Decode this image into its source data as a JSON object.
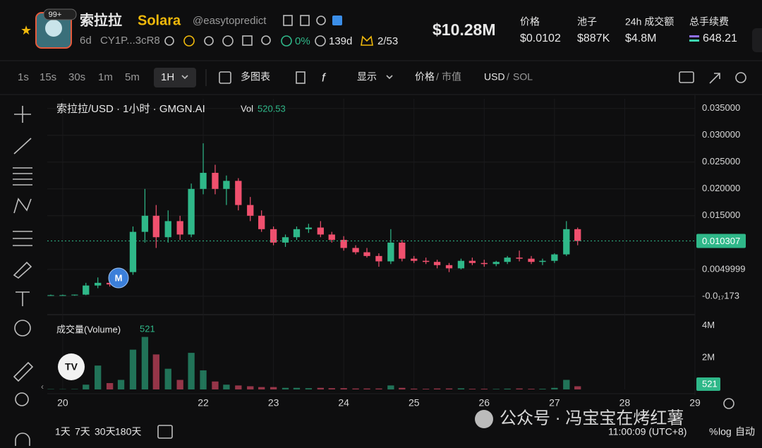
{
  "header": {
    "badge": "99+",
    "name": "索拉拉",
    "symbol": "Solara",
    "handle": "@easytopredict",
    "age": "6d",
    "address": "CY1P...3cR8",
    "holders_pct": "0%",
    "days": "139d",
    "ratio": "2/53",
    "market_cap": "$10.28M",
    "stats": [
      {
        "label": "价格",
        "value": "$0.0102"
      },
      {
        "label": "池子",
        "value": "$887K"
      },
      {
        "label": "24h 成交额",
        "value": "$4.8M"
      },
      {
        "label": "总手续费",
        "value": "648.21"
      }
    ]
  },
  "toolbar": {
    "intervals": [
      "1s",
      "15s",
      "30s",
      "1m",
      "5m",
      "1H"
    ],
    "multi_chart": "多图表",
    "display": "显示",
    "price": "价格",
    "separator": "/",
    "mcap": "市值",
    "usd": "USD",
    "sol": "SOL"
  },
  "chart_data": {
    "type": "candlestick",
    "title": "索拉拉/USD · 1小时 · GMGN.AI",
    "vol_label": "Vol",
    "vol_value": 520.53,
    "x": [
      19.83,
      20.0,
      20.17,
      20.33,
      20.5,
      20.67,
      20.83,
      21.0,
      21.17,
      21.33,
      21.5,
      21.67,
      21.83,
      22.0,
      22.17,
      22.33,
      22.5,
      22.67,
      22.83,
      23.0,
      23.17,
      23.33,
      23.5,
      23.67,
      23.83,
      24.0,
      24.17,
      24.33,
      24.5,
      24.67,
      24.83,
      25.0,
      25.17,
      25.33,
      25.5,
      25.67,
      25.83,
      26.0,
      26.17,
      26.33,
      26.5,
      26.67,
      26.83,
      27.0,
      27.17,
      27.33
    ],
    "open": [
      0.0002,
      0.0002,
      0.0002,
      0.0003,
      0.002,
      0.0025,
      0.0022,
      0.0045,
      0.012,
      0.015,
      0.011,
      0.014,
      0.0115,
      0.02,
      0.023,
      0.02,
      0.0215,
      0.017,
      0.015,
      0.0125,
      0.01,
      0.011,
      0.0125,
      0.0128,
      0.0115,
      0.0105,
      0.009,
      0.0082,
      0.0075,
      0.0065,
      0.01,
      0.007,
      0.0066,
      0.0064,
      0.0058,
      0.0052,
      0.0066,
      0.0062,
      0.006,
      0.0064,
      0.0072,
      0.007,
      0.0064,
      0.0066,
      0.0078,
      0.0125
    ],
    "high": [
      0.0003,
      0.0003,
      0.0003,
      0.0025,
      0.0035,
      0.003,
      0.005,
      0.013,
      0.02,
      0.017,
      0.016,
      0.015,
      0.021,
      0.0285,
      0.0245,
      0.0225,
      0.022,
      0.0185,
      0.016,
      0.013,
      0.0115,
      0.013,
      0.0135,
      0.014,
      0.012,
      0.0112,
      0.0095,
      0.009,
      0.008,
      0.0125,
      0.0105,
      0.0075,
      0.0072,
      0.0068,
      0.0062,
      0.007,
      0.0072,
      0.0068,
      0.0066,
      0.0075,
      0.0085,
      0.0075,
      0.007,
      0.008,
      0.014,
      0.0128
    ],
    "low": [
      0.0001,
      0.0001,
      0.0001,
      0.0002,
      0.0015,
      0.0018,
      0.002,
      0.004,
      0.01,
      0.009,
      0.01,
      0.0105,
      0.011,
      0.019,
      0.019,
      0.017,
      0.016,
      0.014,
      0.012,
      0.0095,
      0.0092,
      0.0105,
      0.0118,
      0.011,
      0.01,
      0.0085,
      0.0078,
      0.0072,
      0.0055,
      0.006,
      0.0065,
      0.0062,
      0.006,
      0.0052,
      0.0045,
      0.005,
      0.0058,
      0.0055,
      0.0056,
      0.006,
      0.0065,
      0.006,
      0.0058,
      0.0062,
      0.0075,
      0.0095
    ],
    "close": [
      0.0002,
      0.0002,
      0.0003,
      0.002,
      0.0025,
      0.0022,
      0.0045,
      0.012,
      0.015,
      0.011,
      0.014,
      0.0115,
      0.02,
      0.023,
      0.02,
      0.0215,
      0.017,
      0.015,
      0.0125,
      0.01,
      0.011,
      0.0125,
      0.0128,
      0.0115,
      0.0105,
      0.009,
      0.0082,
      0.0075,
      0.0065,
      0.01,
      0.007,
      0.0066,
      0.0064,
      0.0058,
      0.0052,
      0.0066,
      0.0062,
      0.006,
      0.0064,
      0.0072,
      0.007,
      0.0064,
      0.0066,
      0.0078,
      0.0125,
      0.0103
    ],
    "volume": [
      20000,
      15000,
      20000,
      300000,
      1500000,
      400000,
      600000,
      2500000,
      3300000,
      2200000,
      1300000,
      600000,
      2300000,
      1200000,
      500000,
      300000,
      250000,
      200000,
      150000,
      150000,
      100000,
      100000,
      80000,
      100000,
      80000,
      80000,
      60000,
      60000,
      60000,
      250000,
      100000,
      50000,
      40000,
      60000,
      60000,
      70000,
      40000,
      40000,
      30000,
      50000,
      60000,
      40000,
      40000,
      100000,
      600000,
      200000
    ],
    "up_color": "#2fb889",
    "down_color": "#f0506e",
    "ylim": [
      -0.0033,
      0.0368
    ],
    "yticks": [
      {
        "value": 0.035,
        "label": "0.035000"
      },
      {
        "value": 0.03,
        "label": "0.030000"
      },
      {
        "value": 0.025,
        "label": "0.025000"
      },
      {
        "value": 0.02,
        "label": "0.020000"
      },
      {
        "value": 0.015,
        "label": "0.015000"
      },
      0.0049999,
      {
        "value": -1.73e-18,
        "label": "-0.0₁₇173"
      }
    ],
    "xlim": [
      19.78,
      29
    ],
    "xticks": [
      20,
      22,
      23,
      24,
      25,
      26,
      27,
      28,
      29
    ],
    "last_price": 0.010307,
    "grid": true,
    "volume_pane": {
      "title": "成交量(Volume)",
      "last": 521,
      "ylim": [
        0,
        4300000
      ],
      "yticks": [
        {
          "value": 4000000,
          "label": "4M"
        },
        {
          "value": 2000000,
          "label": "2M"
        }
      ]
    }
  },
  "marker": "M",
  "footer": {
    "ranges": [
      "1天",
      "7天",
      "30天",
      "180天"
    ],
    "time": "11:00:09 (UTC+8)",
    "percent": "%",
    "log": "log",
    "auto": "自动"
  },
  "watermark": "公众号 · 冯宝宝在烤红薯"
}
